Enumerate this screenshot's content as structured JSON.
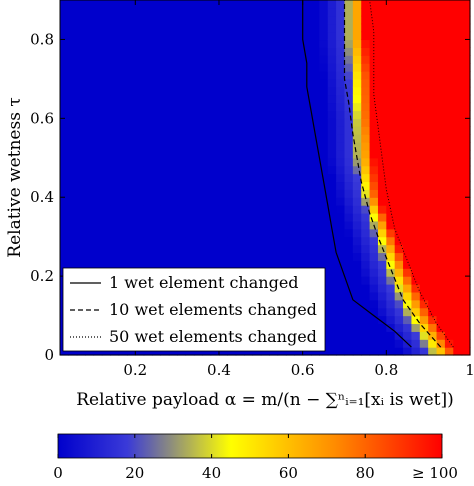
{
  "chart_data": {
    "type": "heatmap",
    "xlabel": "Relative payload α = m/(n − ∑ⁿᵢ₌₁[xᵢ is wet])",
    "ylabel": "Relative wetness τ",
    "xlim": [
      0.02,
      1.0
    ],
    "ylim": [
      0.0,
      0.9
    ],
    "x_ticks": [
      "0.2",
      "0.4",
      "0.6",
      "0.8",
      "1"
    ],
    "y_ticks": [
      "0",
      "0.2",
      "0.4",
      "0.6",
      "0.8"
    ],
    "grid_resolution": 0.02,
    "colorbar": {
      "min": 0,
      "max": 100,
      "tick_labels": [
        "0",
        "20",
        "40",
        "60",
        "80",
        "≥ 100"
      ],
      "colors": [
        "#0000cc",
        "#3a3ad8",
        "#ffff00",
        "#ff8c00",
        "#ff0000"
      ],
      "stops": [
        0,
        0.18,
        0.45,
        0.72,
        1
      ]
    },
    "heat_transition": {
      "tau": [
        0.0,
        0.1,
        0.2,
        0.3,
        0.4,
        0.5,
        0.6,
        0.7,
        0.8,
        0.9
      ],
      "alpha_start": [
        0.9,
        0.84,
        0.8,
        0.77,
        0.74,
        0.72,
        0.72,
        0.71,
        0.7,
        0.7
      ],
      "alpha_full": [
        0.97,
        0.91,
        0.86,
        0.82,
        0.78,
        0.77,
        0.76,
        0.76,
        0.75,
        0.75
      ]
    },
    "series": [
      {
        "name": "1 wet element changed",
        "style": "solid",
        "x": [
          0.86,
          0.82,
          0.77,
          0.72,
          0.7,
          0.68,
          0.67,
          0.66,
          0.65,
          0.64,
          0.63,
          0.62,
          0.61,
          0.61,
          0.6,
          0.6
        ],
        "y": [
          0.02,
          0.06,
          0.1,
          0.14,
          0.2,
          0.26,
          0.32,
          0.38,
          0.44,
          0.5,
          0.56,
          0.62,
          0.68,
          0.74,
          0.8,
          0.9
        ]
      },
      {
        "name": "10 wet elements changed",
        "style": "dashed",
        "x": [
          0.93,
          0.88,
          0.84,
          0.81,
          0.78,
          0.76,
          0.74,
          0.73,
          0.72,
          0.71,
          0.7,
          0.7,
          0.7,
          0.7
        ],
        "y": [
          0.02,
          0.08,
          0.14,
          0.22,
          0.3,
          0.36,
          0.44,
          0.5,
          0.56,
          0.64,
          0.7,
          0.76,
          0.82,
          0.9
        ]
      },
      {
        "name": "50 wet elements changed",
        "style": "dotted",
        "x": [
          0.96,
          0.92,
          0.88,
          0.85,
          0.82,
          0.8,
          0.79,
          0.78,
          0.77,
          0.77,
          0.77,
          0.76
        ],
        "y": [
          0.02,
          0.08,
          0.16,
          0.24,
          0.32,
          0.42,
          0.5,
          0.58,
          0.66,
          0.74,
          0.82,
          0.9
        ]
      }
    ]
  }
}
